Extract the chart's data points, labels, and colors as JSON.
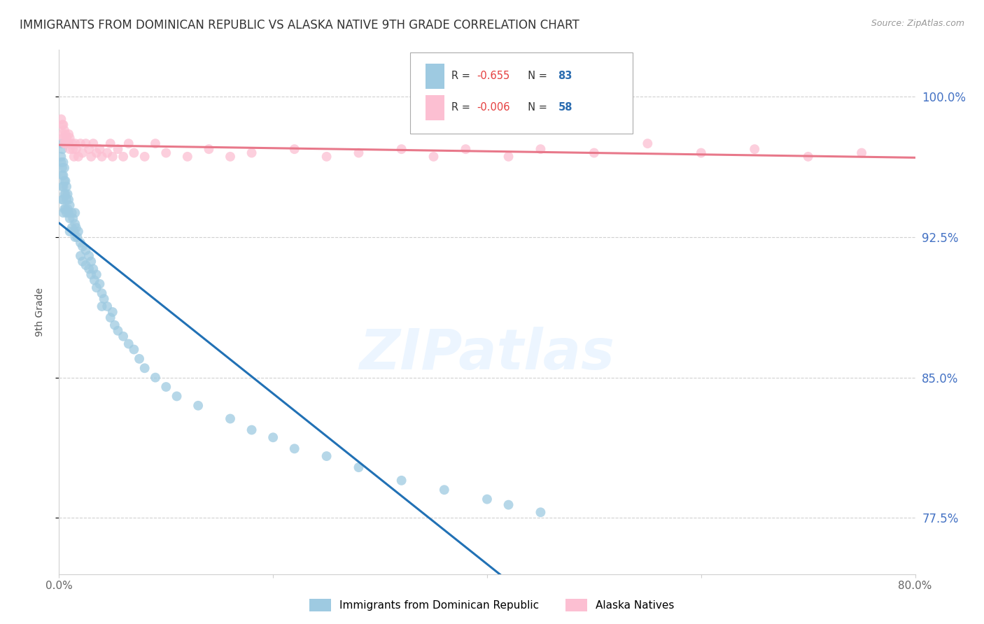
{
  "title": "IMMIGRANTS FROM DOMINICAN REPUBLIC VS ALASKA NATIVE 9TH GRADE CORRELATION CHART",
  "source": "Source: ZipAtlas.com",
  "ylabel": "9th Grade",
  "ytick_values": [
    1.0,
    0.925,
    0.85,
    0.775
  ],
  "xlim": [
    0.0,
    0.8
  ],
  "ylim": [
    0.745,
    1.025
  ],
  "legend_label_blue": "Immigrants from Dominican Republic",
  "legend_label_pink": "Alaska Natives",
  "blue_color": "#9ecae1",
  "pink_color": "#fcbfd2",
  "blue_line_color": "#2171b5",
  "pink_line_color": "#e8788a",
  "blue_rval": "-0.655",
  "blue_nval": "83",
  "pink_rval": "-0.006",
  "pink_nval": "58",
  "blue_scatter_x": [
    0.002,
    0.002,
    0.002,
    0.003,
    0.003,
    0.003,
    0.003,
    0.003,
    0.004,
    0.004,
    0.004,
    0.004,
    0.004,
    0.005,
    0.005,
    0.005,
    0.005,
    0.006,
    0.006,
    0.006,
    0.007,
    0.007,
    0.007,
    0.008,
    0.008,
    0.009,
    0.009,
    0.01,
    0.01,
    0.01,
    0.012,
    0.012,
    0.013,
    0.014,
    0.015,
    0.015,
    0.015,
    0.016,
    0.017,
    0.018,
    0.02,
    0.02,
    0.022,
    0.022,
    0.025,
    0.025,
    0.028,
    0.028,
    0.03,
    0.03,
    0.032,
    0.033,
    0.035,
    0.035,
    0.038,
    0.04,
    0.04,
    0.042,
    0.045,
    0.048,
    0.05,
    0.052,
    0.055,
    0.06,
    0.065,
    0.07,
    0.075,
    0.08,
    0.09,
    0.1,
    0.11,
    0.13,
    0.16,
    0.18,
    0.2,
    0.22,
    0.25,
    0.28,
    0.32,
    0.36,
    0.4,
    0.42,
    0.45
  ],
  "blue_scatter_y": [
    0.975,
    0.968,
    0.965,
    0.972,
    0.962,
    0.958,
    0.952,
    0.945,
    0.965,
    0.958,
    0.952,
    0.945,
    0.938,
    0.962,
    0.955,
    0.948,
    0.94,
    0.955,
    0.948,
    0.94,
    0.952,
    0.945,
    0.938,
    0.948,
    0.94,
    0.945,
    0.938,
    0.942,
    0.935,
    0.928,
    0.938,
    0.93,
    0.935,
    0.928,
    0.938,
    0.932,
    0.925,
    0.93,
    0.925,
    0.928,
    0.922,
    0.915,
    0.92,
    0.912,
    0.918,
    0.91,
    0.915,
    0.908,
    0.912,
    0.905,
    0.908,
    0.902,
    0.905,
    0.898,
    0.9,
    0.895,
    0.888,
    0.892,
    0.888,
    0.882,
    0.885,
    0.878,
    0.875,
    0.872,
    0.868,
    0.865,
    0.86,
    0.855,
    0.85,
    0.845,
    0.84,
    0.835,
    0.828,
    0.822,
    0.818,
    0.812,
    0.808,
    0.802,
    0.795,
    0.79,
    0.785,
    0.782,
    0.778
  ],
  "pink_scatter_x": [
    0.002,
    0.003,
    0.003,
    0.004,
    0.004,
    0.005,
    0.005,
    0.006,
    0.006,
    0.007,
    0.008,
    0.009,
    0.009,
    0.01,
    0.01,
    0.012,
    0.013,
    0.014,
    0.015,
    0.016,
    0.018,
    0.02,
    0.022,
    0.025,
    0.028,
    0.03,
    0.032,
    0.035,
    0.038,
    0.04,
    0.045,
    0.048,
    0.05,
    0.055,
    0.06,
    0.065,
    0.07,
    0.08,
    0.09,
    0.1,
    0.12,
    0.14,
    0.16,
    0.18,
    0.22,
    0.25,
    0.28,
    0.32,
    0.35,
    0.38,
    0.42,
    0.45,
    0.5,
    0.55,
    0.6,
    0.65,
    0.7,
    0.75
  ],
  "pink_scatter_y": [
    0.988,
    0.985,
    0.98,
    0.985,
    0.978,
    0.982,
    0.975,
    0.98,
    0.975,
    0.978,
    0.975,
    0.98,
    0.975,
    0.978,
    0.972,
    0.975,
    0.972,
    0.968,
    0.975,
    0.972,
    0.968,
    0.975,
    0.97,
    0.975,
    0.972,
    0.968,
    0.975,
    0.97,
    0.972,
    0.968,
    0.97,
    0.975,
    0.968,
    0.972,
    0.968,
    0.975,
    0.97,
    0.968,
    0.975,
    0.97,
    0.968,
    0.972,
    0.968,
    0.97,
    0.972,
    0.968,
    0.97,
    0.972,
    0.968,
    0.972,
    0.968,
    0.972,
    0.97,
    0.975,
    0.97,
    0.972,
    0.968,
    0.97
  ],
  "watermark_text": "ZIPatlas",
  "grid_color": "#d0d0d0",
  "right_label_color": "#4472c4",
  "title_color": "#333333"
}
